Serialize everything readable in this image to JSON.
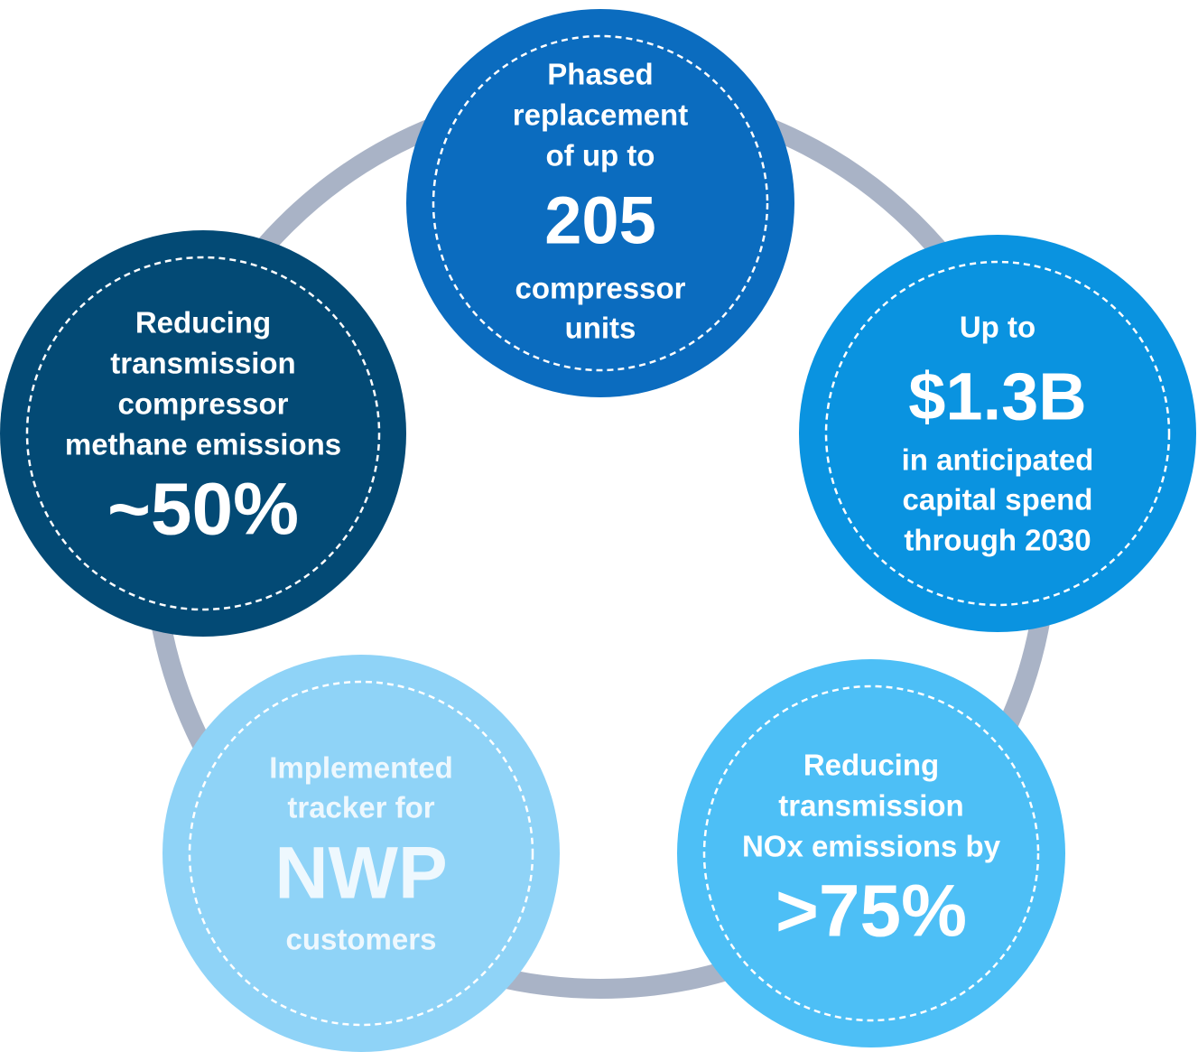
{
  "nodes": [
    {
      "lines": [
        "Phased",
        "replacement",
        "of up to"
      ],
      "highlight": "205",
      "after": [
        "compressor",
        "units"
      ]
    },
    {
      "lines": [
        "Up to"
      ],
      "highlight": "$1.3B",
      "after": [
        "in anticipated",
        "capital spend",
        "through 2030"
      ]
    },
    {
      "lines": [
        "Reducing",
        "transmission",
        "NOx emissions by"
      ],
      "highlight": ">75%",
      "after": []
    },
    {
      "lines": [
        "Implemented",
        "tracker for"
      ],
      "highlight": "NWP",
      "after": [
        "customers"
      ]
    },
    {
      "lines": [
        "Reducing",
        "transmission",
        "compressor",
        "methane emissions"
      ],
      "highlight": "~50%",
      "after": []
    }
  ]
}
